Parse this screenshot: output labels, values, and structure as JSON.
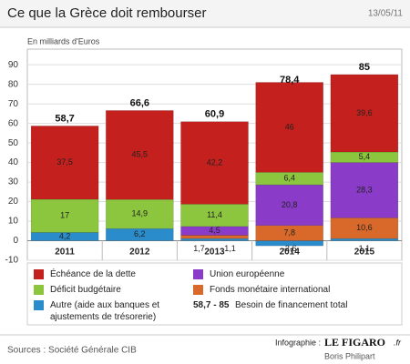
{
  "chart_data": {
    "type": "stacked-bar",
    "title": "Ce que la Grèce doit rembourser",
    "date": "13/05/11",
    "y_label": "En milliards d'Euros",
    "categories": [
      "2011",
      "2012",
      "2013",
      "2014",
      "2015"
    ],
    "series": [
      {
        "name": "Échéance de la dette",
        "color": "#c4201e",
        "values": [
          37.5,
          45.5,
          42.2,
          46,
          39.6
        ],
        "value_labels": [
          "37,5",
          "45,5",
          "42,2",
          "46",
          "39,6"
        ]
      },
      {
        "name": "Union européenne",
        "color": "#8a3cc8",
        "values": [
          null,
          null,
          4.5,
          20.8,
          28.3
        ],
        "value_labels": [
          null,
          null,
          "4,5",
          "20,8",
          "28,3"
        ]
      },
      {
        "name": "Déficit budgétaire",
        "color": "#8cc63e",
        "values": [
          17,
          14.9,
          11.4,
          6.4,
          5.4
        ],
        "value_labels": [
          "17",
          "14,9",
          "11,4",
          "6,4",
          "5,4"
        ]
      },
      {
        "name": "Fonds monétaire international",
        "color": "#d9692a",
        "values": [
          null,
          null,
          1.7,
          7.8,
          10.6
        ],
        "value_labels": [
          null,
          null,
          "1,7",
          "7,8",
          "10,6"
        ]
      },
      {
        "name": "Autre (aide aux banques et ajustements de trésorerie)",
        "color": "#2a8ccb",
        "values": [
          4.2,
          6.2,
          1.1,
          -2.6,
          1.1
        ],
        "value_labels": [
          "4,2",
          "6,2",
          "1,1",
          "-2,6",
          "1,1"
        ]
      }
    ],
    "totals": {
      "name": "Besoin de financement total",
      "range_label": "58,7 - 85",
      "values": [
        58.7,
        66.6,
        60.9,
        78.4,
        85
      ],
      "value_labels": [
        "58,7",
        "66,6",
        "60,9",
        "78,4",
        "85"
      ]
    },
    "ylim": [
      -10,
      98
    ],
    "yticks": [
      -10,
      0,
      10,
      20,
      30,
      40,
      50,
      60,
      70,
      80,
      90
    ],
    "grid": true,
    "source": "Sources : Société Générale CIB",
    "credit": {
      "prefix": "Infographie :",
      "brand": "LE FIGARO",
      "suffix": ".fr",
      "author": "Boris Philipart"
    }
  }
}
